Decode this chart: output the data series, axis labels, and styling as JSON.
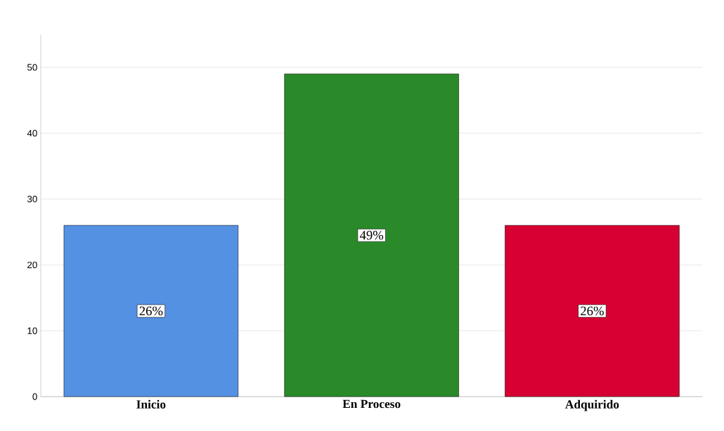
{
  "chart_data": {
    "type": "bar",
    "categories": [
      "Inicio",
      "En Proceso",
      "Adquirido"
    ],
    "values": [
      26,
      49,
      26
    ],
    "colors": [
      "#5591e3",
      "#2a8a2a",
      "#d70032"
    ],
    "value_labels": [
      "26%",
      "49%",
      "26%"
    ],
    "ylim": [
      0,
      55
    ],
    "yticks": [
      0,
      10,
      20,
      30,
      40,
      50
    ],
    "grid": "y"
  }
}
